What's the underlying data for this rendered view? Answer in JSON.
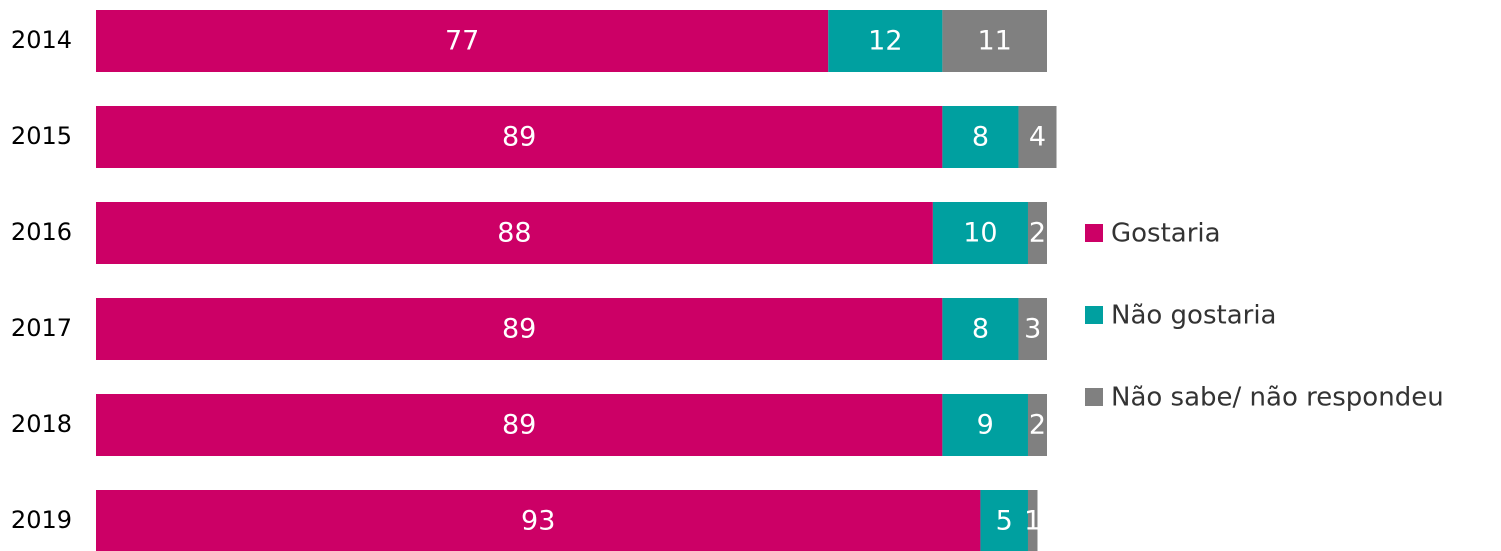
{
  "chart_data": {
    "type": "stacked-barh",
    "categories": [
      "2014",
      "2015",
      "2016",
      "2017",
      "2018",
      "2019"
    ],
    "series": [
      {
        "name": "Gostaria",
        "color": "#cc0066",
        "values": [
          77,
          89,
          88,
          89,
          89,
          93
        ]
      },
      {
        "name": "Não gostaria",
        "color": "#00a0a0",
        "values": [
          12,
          8,
          10,
          8,
          9,
          5
        ]
      },
      {
        "name": "Não sabe/ não respondeu",
        "color": "#808080",
        "values": [
          11,
          4,
          2,
          3,
          2,
          1
        ]
      }
    ],
    "xlim": [
      0,
      100
    ],
    "legend": "right"
  }
}
